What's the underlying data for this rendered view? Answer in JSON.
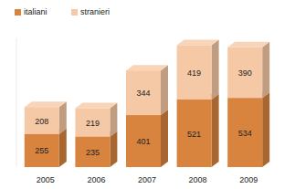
{
  "chart_data": {
    "type": "bar",
    "stacked": true,
    "data_labels": true,
    "tick_labels": "x",
    "legend": "top-left",
    "categories": [
      "2005",
      "2006",
      "2007",
      "2008",
      "2009"
    ],
    "series": [
      {
        "name": "italiani",
        "color": "#d8843f",
        "values": [
          255,
          235,
          401,
          521,
          534
        ]
      },
      {
        "name": "stranieri",
        "color": "#f6c9a6",
        "values": [
          208,
          219,
          344,
          419,
          390
        ]
      }
    ],
    "ylim": [
      0,
      1000
    ]
  }
}
